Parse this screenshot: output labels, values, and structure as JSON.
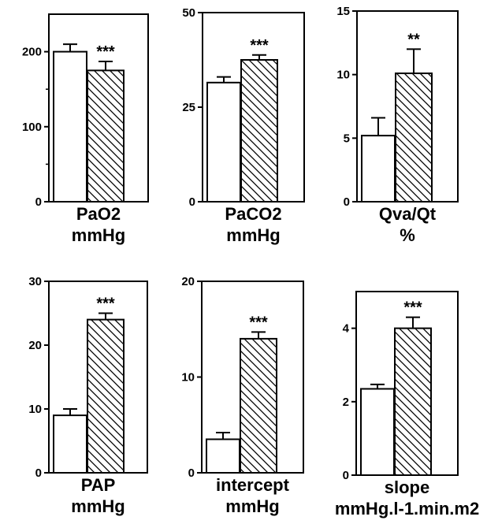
{
  "chart_data": [
    {
      "type": "bar",
      "xlabel": "PaO2",
      "unit": "mmHg",
      "ylim": [
        0,
        250
      ],
      "yticks": [
        0,
        100,
        200
      ],
      "minor_yticks": [
        50,
        150
      ],
      "categories": [
        "",
        ""
      ],
      "values": [
        200,
        175
      ],
      "errors": [
        10,
        12
      ],
      "fills": [
        "open",
        "hatched"
      ],
      "significance": "***"
    },
    {
      "type": "bar",
      "xlabel": "PaCO2",
      "unit": "mmHg",
      "ylim": [
        0,
        50
      ],
      "yticks": [
        0,
        25,
        50
      ],
      "minor_yticks": [],
      "categories": [
        "",
        ""
      ],
      "values": [
        31.5,
        37.5
      ],
      "errors": [
        1.5,
        1.3
      ],
      "fills": [
        "open",
        "hatched"
      ],
      "significance": "***"
    },
    {
      "type": "bar",
      "xlabel": "Qva/Qt",
      "unit": "%",
      "ylim": [
        0,
        15
      ],
      "yticks": [
        0,
        5,
        10,
        15
      ],
      "minor_yticks": [],
      "categories": [
        "",
        ""
      ],
      "values": [
        5.2,
        10.1
      ],
      "errors": [
        1.4,
        1.9
      ],
      "fills": [
        "open",
        "hatched"
      ],
      "significance": "**"
    },
    {
      "type": "bar",
      "xlabel": "PAP",
      "unit": "mmHg",
      "ylim": [
        0,
        30
      ],
      "yticks": [
        0,
        10,
        20,
        30
      ],
      "minor_yticks": [],
      "categories": [
        "",
        ""
      ],
      "values": [
        9,
        24
      ],
      "errors": [
        1,
        1
      ],
      "fills": [
        "open",
        "hatched"
      ],
      "significance": "***"
    },
    {
      "type": "bar",
      "xlabel": "intercept",
      "unit": "mmHg",
      "ylim": [
        0,
        20
      ],
      "yticks": [
        0,
        10,
        20
      ],
      "minor_yticks": [],
      "categories": [
        "",
        ""
      ],
      "values": [
        3.5,
        14
      ],
      "errors": [
        0.7,
        0.7
      ],
      "fills": [
        "open",
        "hatched"
      ],
      "significance": "***"
    },
    {
      "type": "bar",
      "xlabel": "slope",
      "unit": "mmHg.l-1.min.m2",
      "ylim": [
        0,
        5
      ],
      "yticks": [
        0,
        2,
        4
      ],
      "minor_yticks": [],
      "categories": [
        "",
        ""
      ],
      "values": [
        2.35,
        4
      ],
      "errors": [
        0.12,
        0.3
      ],
      "fills": [
        "open",
        "hatched"
      ],
      "significance": "***"
    }
  ]
}
